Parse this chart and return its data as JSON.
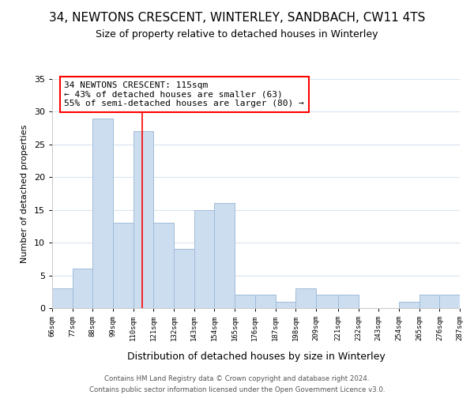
{
  "title": "34, NEWTONS CRESCENT, WINTERLEY, SANDBACH, CW11 4TS",
  "subtitle": "Size of property relative to detached houses in Winterley",
  "xlabel": "Distribution of detached houses by size in Winterley",
  "ylabel": "Number of detached properties",
  "bin_edges": [
    66,
    77,
    88,
    99,
    110,
    121,
    132,
    143,
    154,
    165,
    176,
    187,
    198,
    209,
    221,
    232,
    243,
    254,
    265,
    276,
    287
  ],
  "bar_heights": [
    3,
    6,
    29,
    13,
    27,
    13,
    9,
    15,
    16,
    2,
    2,
    1,
    3,
    2,
    2,
    0,
    0,
    1,
    2,
    2
  ],
  "tick_labels": [
    "66sqm",
    "77sqm",
    "88sqm",
    "99sqm",
    "110sqm",
    "121sqm",
    "132sqm",
    "143sqm",
    "154sqm",
    "165sqm",
    "176sqm",
    "187sqm",
    "198sqm",
    "209sqm",
    "221sqm",
    "232sqm",
    "243sqm",
    "254sqm",
    "265sqm",
    "276sqm",
    "287sqm"
  ],
  "bar_color": "#ccddf0",
  "bar_edge_color": "#a0bcd8",
  "property_line_x": 115,
  "annotation_line1": "34 NEWTONS CRESCENT: 115sqm",
  "annotation_line2": "← 43% of detached houses are smaller (63)",
  "annotation_line3": "55% of semi-detached houses are larger (80) →",
  "ylim": [
    0,
    35
  ],
  "yticks": [
    0,
    5,
    10,
    15,
    20,
    25,
    30,
    35
  ],
  "footer_line1": "Contains HM Land Registry data © Crown copyright and database right 2024.",
  "footer_line2": "Contains public sector information licensed under the Open Government Licence v3.0.",
  "background_color": "#ffffff",
  "grid_color": "#d8e4f0"
}
